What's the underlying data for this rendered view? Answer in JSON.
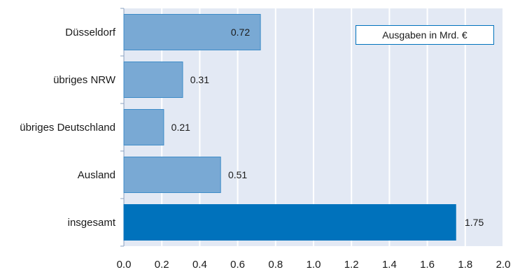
{
  "chart_data": {
    "type": "bar",
    "orientation": "horizontal",
    "categories": [
      "Düsseldorf",
      "übriges NRW",
      "übriges Deutschland",
      "Ausland",
      "insgesamt"
    ],
    "values": [
      0.72,
      0.31,
      0.21,
      0.51,
      1.75
    ],
    "value_labels": [
      "0.72",
      "0.31",
      "0.21",
      "0.51",
      "1.75"
    ],
    "xlim": [
      0,
      2.0
    ],
    "xticks": [
      "0.0",
      "0.2",
      "0.4",
      "0.6",
      "0.8",
      "1.0",
      "1.2",
      "1.4",
      "1.6",
      "1.8",
      "2.0"
    ],
    "grid": true,
    "legend": {
      "label": "Ausgaben in Mrd. €",
      "placement": "top-right"
    },
    "colors": {
      "bar": "#79a9d4",
      "bar_border": "#3d8cc8",
      "total_bar": "#0072bc",
      "plot_background": "#e3e9f4",
      "grid": "#ffffff",
      "axis": "#8aa0c0"
    }
  }
}
